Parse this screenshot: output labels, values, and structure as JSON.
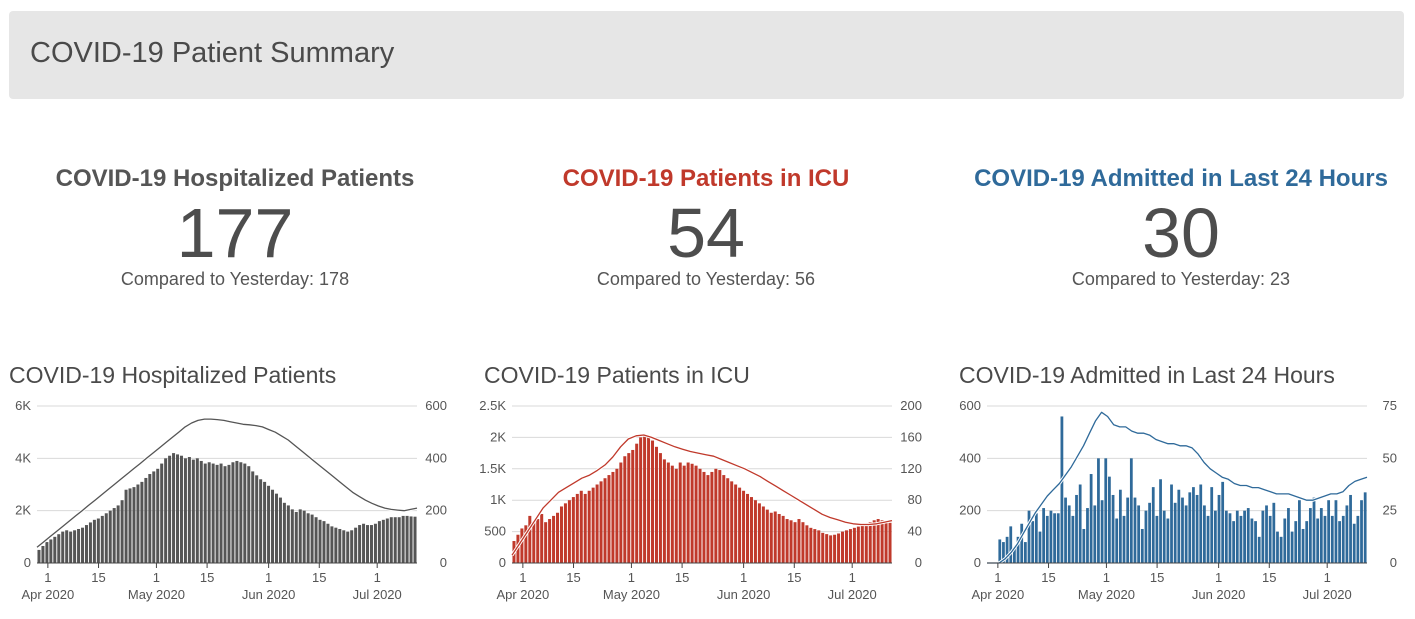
{
  "header": {
    "title": "COVID-19 Patient Summary"
  },
  "kpis": [
    {
      "title": "COVID-19 Hospitalized Patients",
      "value": "177",
      "compare": "Compared to Yesterday: 178",
      "color": "#555555"
    },
    {
      "title": "COVID-19 Patients in ICU",
      "value": "54",
      "compare": "Compared to Yesterday: 56",
      "color": "#c0392b"
    },
    {
      "title": "COVID-19 Admitted in Last 24 Hours",
      "value": "30",
      "compare": "Compared to Yesterday: 23",
      "color": "#2f6a9a"
    }
  ],
  "chart_data": [
    {
      "type": "bar",
      "title": "COVID-19 Hospitalized Patients",
      "bar_color": "#555555",
      "line_color": "#555555",
      "x_start": "2020-03-29",
      "x_end": "2020-07-12",
      "x_ticks": [
        "1",
        "15",
        "1",
        "15",
        "1",
        "15",
        "1"
      ],
      "x_tick_dates": [
        "2020-04-01",
        "2020-04-15",
        "2020-05-01",
        "2020-05-15",
        "2020-06-01",
        "2020-06-15",
        "2020-07-01"
      ],
      "x_month_labels": [
        "Apr 2020",
        "May 2020",
        "Jun 2020",
        "Jul 2020"
      ],
      "x_month_dates": [
        "2020-04-01",
        "2020-05-01",
        "2020-06-01",
        "2020-07-01"
      ],
      "y_left_ticks": [
        "0",
        "2K",
        "4K",
        "6K"
      ],
      "y_left_range": [
        0,
        6000
      ],
      "y_right_ticks": [
        "0",
        "200",
        "400",
        "600"
      ],
      "y_right_range": [
        0,
        600
      ],
      "series": [
        {
          "axis": "left",
          "type": "bar",
          "values": [
            500,
            650,
            800,
            900,
            1000,
            1100,
            1200,
            1250,
            1200,
            1250,
            1300,
            1350,
            1450,
            1550,
            1650,
            1700,
            1800,
            1900,
            2000,
            2100,
            2200,
            2400,
            2800,
            2850,
            2900,
            3000,
            3100,
            3250,
            3400,
            3500,
            3600,
            3800,
            4000,
            4100,
            4200,
            4150,
            4100,
            4000,
            4050,
            3950,
            4000,
            3900,
            3800,
            3850,
            3800,
            3750,
            3800,
            3700,
            3750,
            3850,
            3900,
            3850,
            3800,
            3700,
            3500,
            3350,
            3200,
            3100,
            2950,
            2800,
            2650,
            2500,
            2300,
            2200,
            2050,
            1950,
            2050,
            2000,
            1900,
            1850,
            1750,
            1650,
            1600,
            1500,
            1400,
            1350,
            1300,
            1250,
            1200,
            1250,
            1350,
            1450,
            1500,
            1450,
            1450,
            1500,
            1600,
            1650,
            1700,
            1750,
            1750,
            1750,
            1800,
            1800,
            1780,
            1770
          ]
        },
        {
          "axis": "right",
          "type": "line",
          "values": [
            60,
            80,
            100,
            120,
            140,
            160,
            180,
            200,
            220,
            240,
            260,
            280,
            300,
            320,
            340,
            360,
            380,
            400,
            420,
            440,
            460,
            480,
            500,
            520,
            535,
            545,
            550,
            550,
            548,
            545,
            540,
            535,
            530,
            528,
            525,
            520,
            510,
            500,
            485,
            470,
            450,
            430,
            410,
            390,
            370,
            350,
            330,
            310,
            290,
            270,
            255,
            240,
            228,
            218,
            210,
            205,
            202,
            200,
            205,
            210
          ]
        }
      ]
    },
    {
      "type": "bar",
      "title": "COVID-19 Patients in ICU",
      "bar_color": "#c0392b",
      "line_color": "#c0392b",
      "x_start": "2020-03-29",
      "x_end": "2020-07-12",
      "x_ticks": [
        "1",
        "15",
        "1",
        "15",
        "1",
        "15",
        "1"
      ],
      "x_tick_dates": [
        "2020-04-01",
        "2020-04-15",
        "2020-05-01",
        "2020-05-15",
        "2020-06-01",
        "2020-06-15",
        "2020-07-01"
      ],
      "x_month_labels": [
        "Apr 2020",
        "May 2020",
        "Jun 2020",
        "Jul 2020"
      ],
      "x_month_dates": [
        "2020-04-01",
        "2020-05-01",
        "2020-06-01",
        "2020-07-01"
      ],
      "y_left_ticks": [
        "0",
        "500",
        "1K",
        "1.5K",
        "2K",
        "2.5K"
      ],
      "y_left_range": [
        0,
        2500
      ],
      "y_right_ticks": [
        "0",
        "40",
        "80",
        "120",
        "160",
        "200"
      ],
      "y_right_range": [
        0,
        200
      ],
      "series": [
        {
          "axis": "left",
          "type": "bar",
          "values": [
            350,
            450,
            550,
            600,
            750,
            650,
            700,
            780,
            650,
            700,
            750,
            800,
            900,
            950,
            1000,
            1050,
            1100,
            1150,
            1100,
            1150,
            1200,
            1250,
            1300,
            1350,
            1400,
            1450,
            1500,
            1600,
            1700,
            1750,
            1800,
            1900,
            2000,
            2050,
            2000,
            1950,
            1850,
            1750,
            1650,
            1600,
            1550,
            1500,
            1600,
            1550,
            1600,
            1580,
            1550,
            1500,
            1450,
            1400,
            1450,
            1500,
            1480,
            1400,
            1350,
            1300,
            1250,
            1200,
            1150,
            1100,
            1050,
            1000,
            950,
            900,
            850,
            800,
            820,
            780,
            750,
            700,
            680,
            650,
            700,
            650,
            600,
            560,
            540,
            520,
            480,
            460,
            440,
            450,
            470,
            500,
            520,
            540,
            560,
            580,
            600,
            620,
            650,
            680,
            700,
            680,
            660,
            640
          ]
        },
        {
          "axis": "right",
          "type": "line",
          "values": [
            10,
            25,
            40,
            55,
            70,
            80,
            90,
            96,
            102,
            108,
            112,
            118,
            125,
            135,
            148,
            158,
            162,
            163,
            160,
            156,
            152,
            148,
            145,
            142,
            140,
            138,
            136,
            132,
            128,
            124,
            120,
            115,
            110,
            104,
            98,
            92,
            86,
            80,
            74,
            68,
            62,
            58,
            55,
            52,
            50,
            49,
            49,
            50,
            52,
            54
          ]
        }
      ]
    },
    {
      "type": "bar",
      "title": "COVID-19 Admitted in Last 24 Hours",
      "bar_color": "#2f6a9a",
      "line_color": "#2f6a9a",
      "x_start": "2020-03-29",
      "x_end": "2020-07-12",
      "x_ticks": [
        "1",
        "15",
        "1",
        "15",
        "1",
        "15",
        "1"
      ],
      "x_tick_dates": [
        "2020-04-01",
        "2020-04-15",
        "2020-05-01",
        "2020-05-15",
        "2020-06-01",
        "2020-06-15",
        "2020-07-01"
      ],
      "x_month_labels": [
        "Apr 2020",
        "May 2020",
        "Jun 2020",
        "Jul 2020"
      ],
      "x_month_dates": [
        "2020-04-01",
        "2020-05-01",
        "2020-06-01",
        "2020-07-01"
      ],
      "y_left_ticks": [
        "0",
        "200",
        "400",
        "600"
      ],
      "y_left_range": [
        0,
        600
      ],
      "y_right_ticks": [
        "0",
        "25",
        "50",
        "75"
      ],
      "y_right_range": [
        0,
        75
      ],
      "series": [
        {
          "axis": "left",
          "type": "bar",
          "values": [
            0,
            0,
            0,
            90,
            80,
            100,
            140,
            60,
            100,
            150,
            80,
            200,
            160,
            190,
            120,
            210,
            180,
            200,
            190,
            190,
            560,
            250,
            220,
            180,
            260,
            300,
            130,
            210,
            340,
            220,
            400,
            240,
            400,
            330,
            260,
            170,
            280,
            180,
            250,
            400,
            250,
            220,
            130,
            200,
            230,
            290,
            180,
            320,
            200,
            170,
            300,
            230,
            280,
            250,
            220,
            270,
            290,
            260,
            300,
            220,
            180,
            290,
            200,
            260,
            310,
            200,
            190,
            160,
            200,
            180,
            200,
            210,
            170,
            160,
            100,
            200,
            220,
            180,
            230,
            120,
            100,
            170,
            210,
            120,
            160,
            240,
            130,
            160,
            210,
            250,
            170,
            210,
            180,
            240,
            180,
            240,
            160,
            180,
            220,
            260,
            150,
            180,
            240,
            270
          ]
        },
        {
          "axis": "right",
          "type": "line",
          "values": [
            0,
            0,
            0,
            2,
            5,
            9,
            14,
            19,
            24,
            28,
            32,
            35,
            38,
            42,
            46,
            51,
            56,
            62,
            68,
            72,
            70,
            66,
            65,
            65,
            63,
            62,
            62,
            61,
            59,
            58,
            57,
            57,
            56,
            56,
            55,
            52,
            48,
            45,
            43,
            41,
            40,
            38,
            37,
            37,
            36,
            36,
            35,
            34,
            33,
            33,
            33,
            32,
            31,
            30,
            30,
            31,
            32,
            33,
            33,
            34,
            37,
            39,
            40,
            41
          ]
        }
      ]
    }
  ]
}
